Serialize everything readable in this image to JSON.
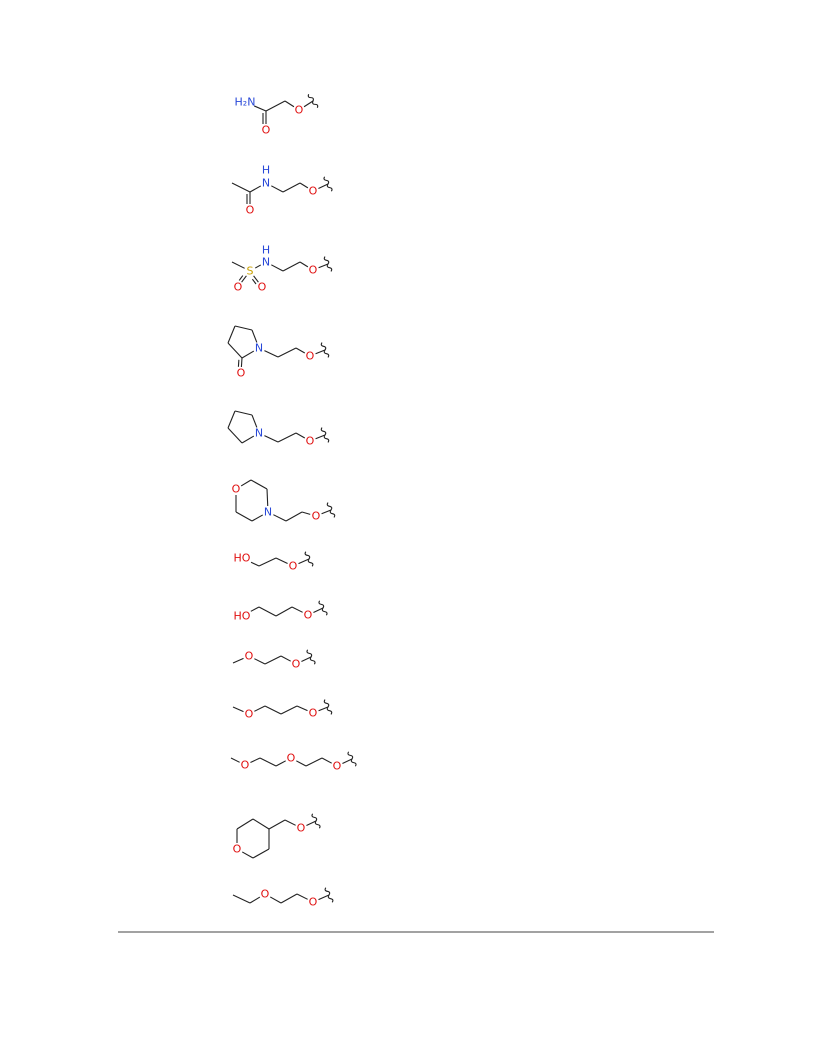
{
  "structures": [
    {
      "labels": [
        "H₂N",
        "O",
        "O"
      ]
    },
    {
      "labels": [
        "H",
        "N",
        "O",
        "O"
      ]
    },
    {
      "labels": [
        "H",
        "N",
        "S",
        "O",
        "O",
        "O"
      ]
    },
    {
      "labels": [
        "N",
        "O",
        "O"
      ]
    },
    {
      "labels": [
        "N",
        "O"
      ]
    },
    {
      "labels": [
        "O",
        "N",
        "O"
      ]
    },
    {
      "labels": [
        "HO",
        "O"
      ]
    },
    {
      "labels": [
        "HO",
        "O"
      ]
    },
    {
      "labels": [
        "O",
        "O"
      ]
    },
    {
      "labels": [
        "O",
        "O"
      ]
    },
    {
      "labels": [
        "O",
        "O",
        "O"
      ]
    },
    {
      "labels": [
        "O",
        "O"
      ]
    },
    {
      "labels": [
        "O",
        "O"
      ]
    }
  ]
}
